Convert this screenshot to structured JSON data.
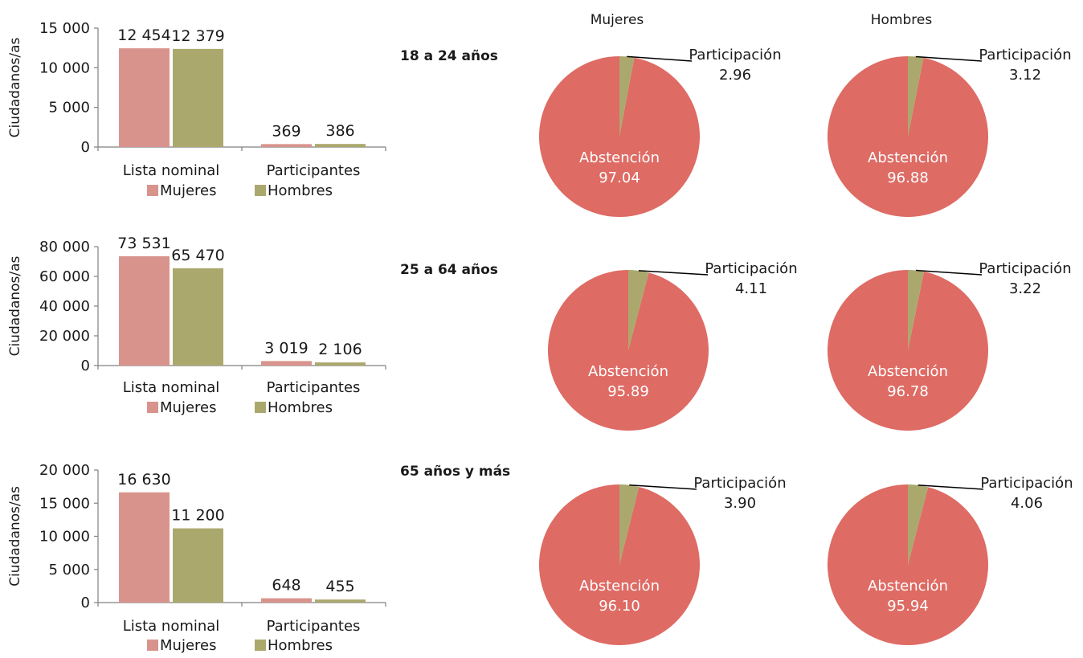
{
  "colors": {
    "mujeres_bar": "#d9938d",
    "hombres_bar": "#aba86e",
    "abstencion": "#de6b64",
    "participacion": "#aba86e",
    "axis": "#808080"
  },
  "pie_headers": [
    "Mujeres",
    "Hombres"
  ],
  "legend": [
    "Mujeres",
    "Hombres"
  ],
  "chart_data": [
    {
      "type": "bar",
      "ylabel": "Ciudadanos/as",
      "ylim": [
        0,
        15000
      ],
      "yticks": [
        "0",
        "5 000",
        "10 000",
        "15 000"
      ],
      "categories": [
        "Lista nominal",
        "Participantes"
      ],
      "series": [
        {
          "name": "Mujeres",
          "values": [
            12454,
            369
          ],
          "labels": [
            "12 454",
            "369"
          ]
        },
        {
          "name": "Hombres",
          "values": [
            12379,
            386
          ],
          "labels": [
            "12 379",
            "386"
          ]
        }
      ]
    },
    {
      "type": "bar",
      "ylabel": "Ciudadanos/as",
      "ylim": [
        0,
        80000
      ],
      "yticks": [
        "0",
        "20 000",
        "40 000",
        "60 000",
        "80 000"
      ],
      "categories": [
        "Lista nominal",
        "Participantes"
      ],
      "series": [
        {
          "name": "Mujeres",
          "values": [
            73531,
            3019
          ],
          "labels": [
            "73 531",
            "3 019"
          ]
        },
        {
          "name": "Hombres",
          "values": [
            65470,
            2106
          ],
          "labels": [
            "65 470",
            "2 106"
          ]
        }
      ]
    },
    {
      "type": "bar",
      "ylabel": "Ciudadanos/as",
      "ylim": [
        0,
        20000
      ],
      "yticks": [
        "0",
        "5 000",
        "10 000",
        "15 000",
        "20 000"
      ],
      "categories": [
        "Lista nominal",
        "Participantes"
      ],
      "series": [
        {
          "name": "Mujeres",
          "values": [
            16630,
            648
          ],
          "labels": [
            "16 630",
            "648"
          ]
        },
        {
          "name": "Hombres",
          "values": [
            11200,
            455
          ],
          "labels": [
            "11 200",
            "455"
          ]
        }
      ]
    },
    {
      "type": "pie",
      "group": "18 a 24 años",
      "sex": "Mujeres",
      "slices": [
        {
          "label": "Participación",
          "value": 2.96,
          "text": "2.96"
        },
        {
          "label": "Abstención",
          "value": 97.04,
          "text": "97.04"
        }
      ]
    },
    {
      "type": "pie",
      "group": "18 a 24 años",
      "sex": "Hombres",
      "slices": [
        {
          "label": "Participación",
          "value": 3.12,
          "text": "3.12"
        },
        {
          "label": "Abstención",
          "value": 96.88,
          "text": "96.88"
        }
      ]
    },
    {
      "type": "pie",
      "group": "25 a 64 años",
      "sex": "Mujeres",
      "slices": [
        {
          "label": "Participación",
          "value": 4.11,
          "text": "4.11"
        },
        {
          "label": "Abstención",
          "value": 95.89,
          "text": "95.89"
        }
      ]
    },
    {
      "type": "pie",
      "group": "25 a 64 años",
      "sex": "Hombres",
      "slices": [
        {
          "label": "Participación",
          "value": 3.22,
          "text": "3.22"
        },
        {
          "label": "Abstención",
          "value": 96.78,
          "text": "96.78"
        }
      ]
    },
    {
      "type": "pie",
      "group": "65 años y más",
      "sex": "Mujeres",
      "slices": [
        {
          "label": "Participación",
          "value": 3.9,
          "text": "3.90"
        },
        {
          "label": "Abstención",
          "value": 96.1,
          "text": "96.10"
        }
      ]
    },
    {
      "type": "pie",
      "group": "65 años y más",
      "sex": "Hombres",
      "slices": [
        {
          "label": "Participación",
          "value": 4.06,
          "text": "4.06"
        },
        {
          "label": "Abstención",
          "value": 95.94,
          "text": "95.94"
        }
      ]
    }
  ]
}
